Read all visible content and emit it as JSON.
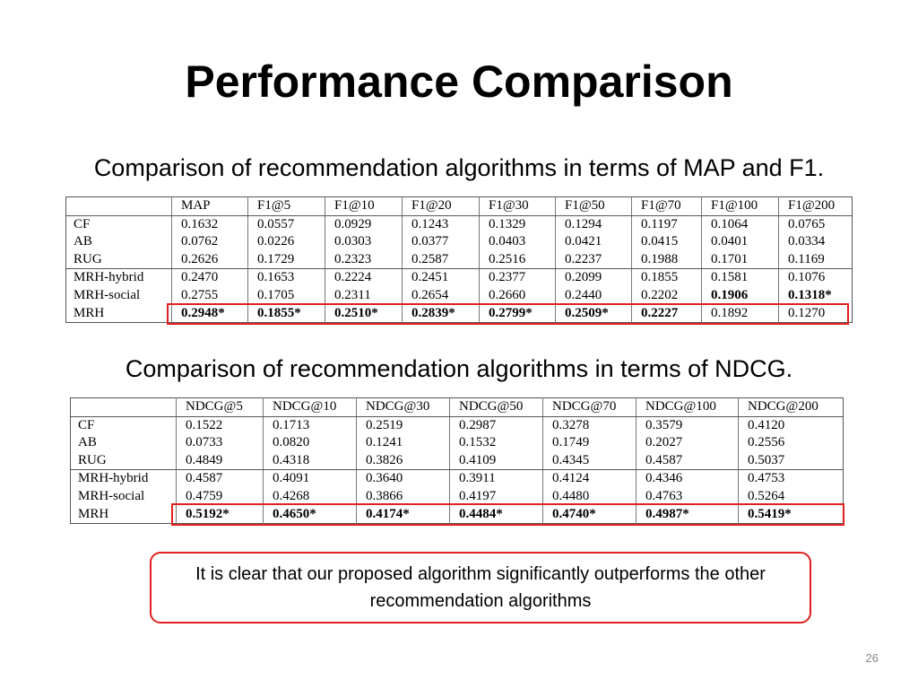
{
  "slide": {
    "title": "Performance Comparison",
    "caption_f1": "Comparison of recommendation algorithms in terms of MAP and F1.",
    "caption_ndcg": "Comparison of recommendation algorithms in terms of NDCG.",
    "conclusion": "It is clear that our proposed algorithm significantly outperforms the other recommendation algorithms",
    "page_number": "26",
    "highlight_color": "#e02020"
  },
  "table_f1": {
    "headers": [
      "",
      "MAP",
      "F1@5",
      "F1@10",
      "F1@20",
      "F1@30",
      "F1@50",
      "F1@70",
      "F1@100",
      "F1@200"
    ],
    "rows": [
      {
        "name": "CF",
        "values": [
          "0.1632",
          "0.0557",
          "0.0929",
          "0.1243",
          "0.1329",
          "0.1294",
          "0.1197",
          "0.1064",
          "0.0765"
        ]
      },
      {
        "name": "AB",
        "values": [
          "0.0762",
          "0.0226",
          "0.0303",
          "0.0377",
          "0.0403",
          "0.0421",
          "0.0415",
          "0.0401",
          "0.0334"
        ]
      },
      {
        "name": "RUG",
        "values": [
          "0.2626",
          "0.1729",
          "0.2323",
          "0.2587",
          "0.2516",
          "0.2237",
          "0.1988",
          "0.1701",
          "0.1169"
        ]
      },
      {
        "name": "MRH-hybrid",
        "values": [
          "0.2470",
          "0.1653",
          "0.2224",
          "0.2451",
          "0.2377",
          "0.2099",
          "0.1855",
          "0.1581",
          "0.1076"
        ]
      },
      {
        "name": "MRH-social",
        "values": [
          "0.2755",
          "0.1705",
          "0.2311",
          "0.2654",
          "0.2660",
          "0.2440",
          "0.2202",
          "0.1906",
          "0.1318*"
        ]
      },
      {
        "name": "MRH",
        "values": [
          "0.2948*",
          "0.1855*",
          "0.2510*",
          "0.2839*",
          "0.2799*",
          "0.2509*",
          "0.2227",
          "0.1892",
          "0.1270"
        ]
      }
    ]
  },
  "table_ndcg": {
    "headers": [
      "",
      "NDCG@5",
      "NDCG@10",
      "NDCG@30",
      "NDCG@50",
      "NDCG@70",
      "NDCG@100",
      "NDCG@200"
    ],
    "rows": [
      {
        "name": "CF",
        "values": [
          "0.1522",
          "0.1713",
          "0.2519",
          "0.2987",
          "0.3278",
          "0.3579",
          "0.4120"
        ]
      },
      {
        "name": "AB",
        "values": [
          "0.0733",
          "0.0820",
          "0.1241",
          "0.1532",
          "0.1749",
          "0.2027",
          "0.2556"
        ]
      },
      {
        "name": "RUG",
        "values": [
          "0.4849",
          "0.4318",
          "0.3826",
          "0.4109",
          "0.4345",
          "0.4587",
          "0.5037"
        ]
      },
      {
        "name": "MRH-hybrid",
        "values": [
          "0.4587",
          "0.4091",
          "0.3640",
          "0.3911",
          "0.4124",
          "0.4346",
          "0.4753"
        ]
      },
      {
        "name": "MRH-social",
        "values": [
          "0.4759",
          "0.4268",
          "0.3866",
          "0.4197",
          "0.4480",
          "0.4763",
          "0.5264"
        ]
      },
      {
        "name": "MRH",
        "values": [
          "0.5192*",
          "0.4650*",
          "0.4174*",
          "0.4484*",
          "0.4740*",
          "0.4987*",
          "0.5419*"
        ]
      }
    ]
  }
}
